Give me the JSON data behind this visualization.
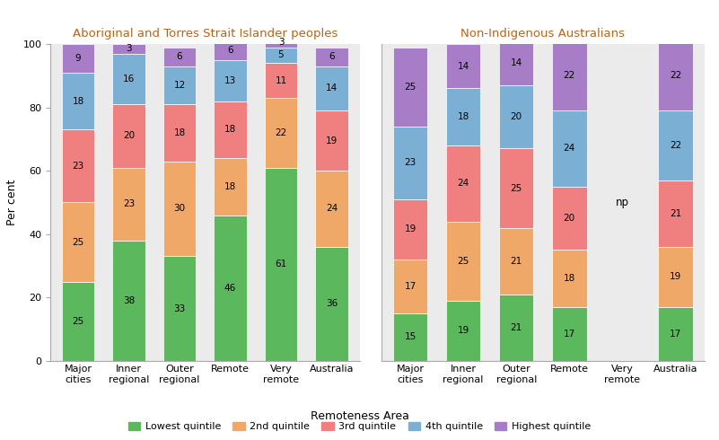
{
  "indigenous_categories": [
    "Major\ncities",
    "Inner\nregional",
    "Outer\nregional",
    "Remote",
    "Very\nremote",
    "Australia"
  ],
  "nonindigenous_categories": [
    "Major\ncities",
    "Inner\nregional",
    "Outer\nregional",
    "Remote",
    "Very\nremote",
    "Australia"
  ],
  "indigenous_data": {
    "lowest": [
      25,
      38,
      33,
      46,
      61,
      36
    ],
    "second": [
      25,
      23,
      30,
      18,
      22,
      24
    ],
    "third": [
      23,
      20,
      18,
      18,
      11,
      19
    ],
    "fourth": [
      18,
      16,
      12,
      13,
      5,
      14
    ],
    "highest": [
      9,
      3,
      6,
      6,
      3,
      6
    ]
  },
  "nonindigenous_data": {
    "lowest": [
      15,
      19,
      21,
      17,
      null,
      17
    ],
    "second": [
      17,
      25,
      21,
      18,
      null,
      19
    ],
    "third": [
      19,
      24,
      25,
      20,
      null,
      21
    ],
    "fourth": [
      23,
      18,
      20,
      24,
      null,
      22
    ],
    "highest": [
      25,
      14,
      14,
      22,
      null,
      22
    ]
  },
  "colors": {
    "lowest": "#5cb85c",
    "second": "#f0a868",
    "third": "#f08080",
    "fourth": "#7bafd4",
    "highest": "#a87dc8"
  },
  "title_indigenous": "Aboriginal and Torres Strait Islander peoples",
  "title_nonindigenous": "Non-Indigenous Australians",
  "xlabel": "Remoteness Area",
  "ylabel": "Per cent",
  "ylim": [
    0,
    100
  ],
  "legend_labels": [
    "Lowest quintile",
    "2nd quintile",
    "3rd quintile",
    "4th quintile",
    "Highest quintile"
  ],
  "bg_color": "#ebebeb",
  "title_color": "#b5651d",
  "bar_width": 0.65,
  "text_fontsize": 7.5,
  "label_fontsize": 8.0,
  "title_fontsize": 9.5
}
